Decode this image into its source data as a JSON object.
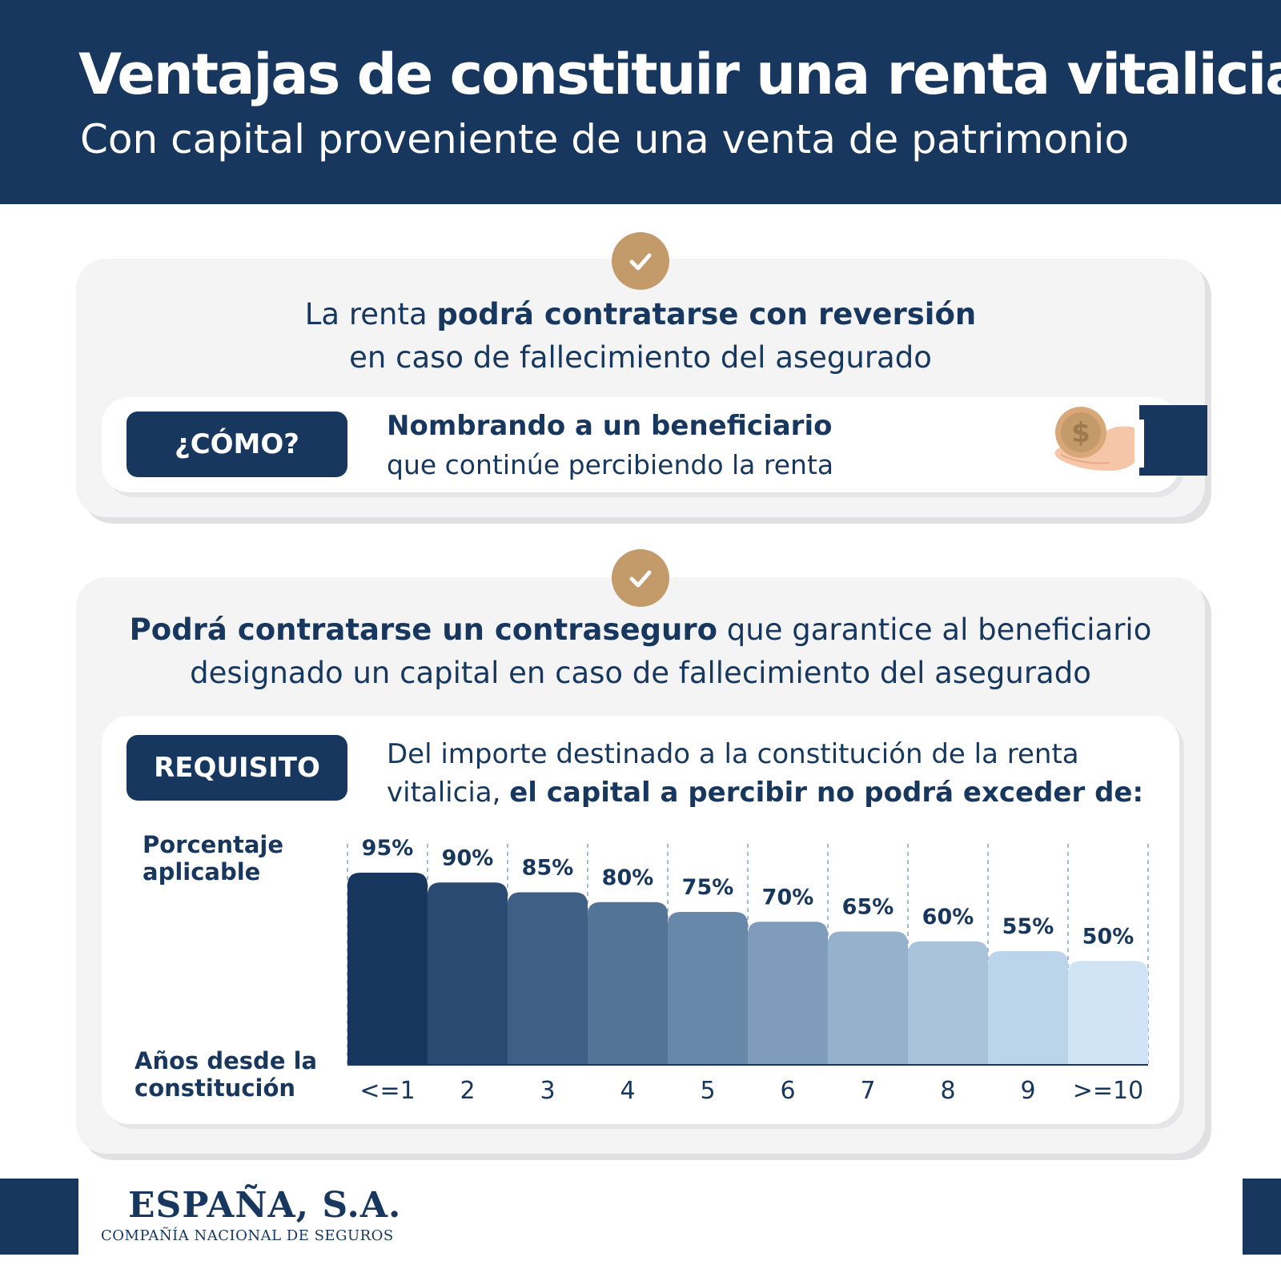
{
  "header": {
    "title": "Ventajas de constituir una renta vitalicia",
    "subtitle": "Con capital proveniente de una venta de patrimonio"
  },
  "card1": {
    "lead_pre": "La renta ",
    "lead_bold": "podrá contratarse con reversión",
    "lead_post": "en caso de fallecimiento del asegurado",
    "pill": "¿CÓMO?",
    "how_bold": "Nombrando a un beneficiario",
    "how_text": "que continúe percibiendo la renta"
  },
  "card2": {
    "lead_bold": "Podrá contratarse un contraseguro",
    "lead_rest": " que garantice al beneficiario",
    "lead_line2": "designado un capital en caso de fallecimiento del asegurado",
    "pill": "REQUISITO",
    "req_text": "Del importe destinado a la constitución de la renta vitalicia, ",
    "req_bold": "el capital a percibir no podrá exceder de:"
  },
  "chart_data": {
    "type": "bar",
    "ylabel": "Porcentaje aplicable",
    "xlabel": "Años desde la constitución",
    "categories": [
      "<=1",
      "2",
      "3",
      "4",
      "5",
      "6",
      "7",
      "8",
      "9",
      ">=10"
    ],
    "values": [
      95,
      90,
      85,
      80,
      75,
      70,
      65,
      60,
      55,
      50
    ],
    "value_labels": [
      "95%",
      "90%",
      "85%",
      "80%",
      "75%",
      "70%",
      "65%",
      "60%",
      "55%",
      "50%"
    ],
    "colors": [
      "#17375e",
      "#2b4a72",
      "#3f5f84",
      "#527496",
      "#6888aa",
      "#7f9cbc",
      "#96b1cc",
      "#a9c3db",
      "#bcd4e9",
      "#d1e4f6"
    ]
  },
  "footer": {
    "brand": "ESPAÑA, S.A.",
    "brand_sub": "COMPAÑÍA NACIONAL DE SEGUROS"
  },
  "icons": {
    "check": "check-icon",
    "hand": "hand-coin-icon"
  },
  "colors": {
    "navy": "#17375e",
    "gold": "#c39a6a",
    "card": "#f4f4f5"
  }
}
